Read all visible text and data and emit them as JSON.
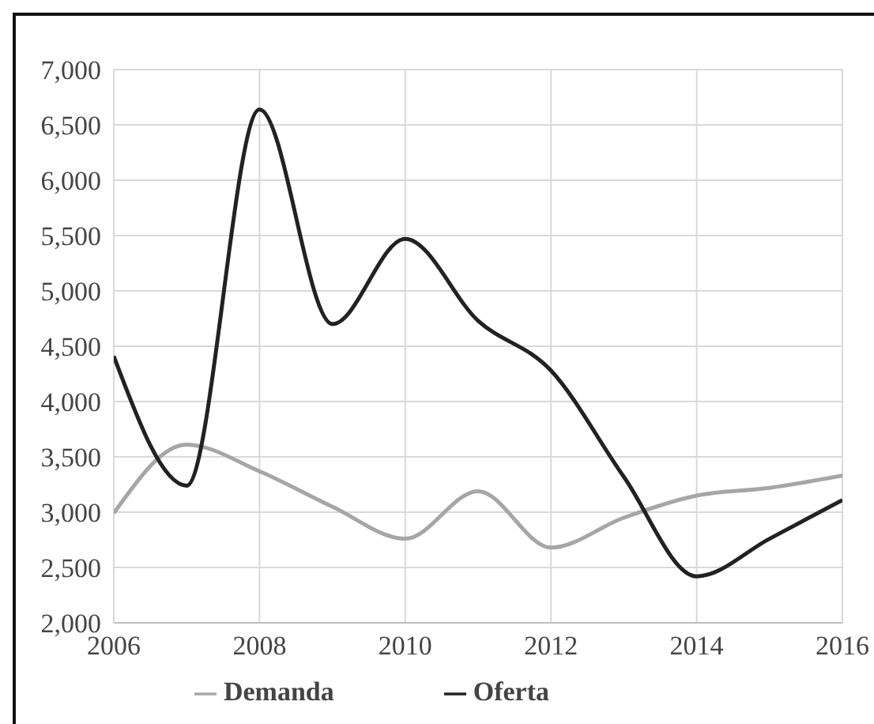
{
  "chart_data": {
    "type": "line",
    "x": [
      2006,
      2007,
      2008,
      2009,
      2010,
      2011,
      2012,
      2013,
      2014,
      2015,
      2016
    ],
    "series": [
      {
        "name": "Demanda",
        "color": "#a6a6a6",
        "values": [
          2990,
          3610,
          3370,
          3050,
          2760,
          3190,
          2680,
          2950,
          3150,
          3220,
          3330
        ]
      },
      {
        "name": "Oferta",
        "color": "#222222",
        "values": [
          4410,
          3240,
          6640,
          4700,
          5470,
          4730,
          4280,
          3320,
          2420,
          2760,
          3110
        ]
      }
    ],
    "xlim": [
      2006,
      2016
    ],
    "xticks": [
      2006,
      2008,
      2010,
      2012,
      2014,
      2016
    ],
    "ylim": [
      2000,
      7000
    ],
    "yticks": [
      {
        "value": 2000,
        "label": "2,000"
      },
      {
        "value": 2500,
        "label": "2,500"
      },
      {
        "value": 3000,
        "label": "3,000"
      },
      {
        "value": 3500,
        "label": "3,500"
      },
      {
        "value": 4000,
        "label": "4,000"
      },
      {
        "value": 4500,
        "label": "4,500"
      },
      {
        "value": 5000,
        "label": "5,000"
      },
      {
        "value": 5500,
        "label": "5,500"
      },
      {
        "value": 6000,
        "label": "6,000"
      },
      {
        "value": 6500,
        "label": "6,500"
      },
      {
        "value": 7000,
        "label": "7,000"
      }
    ],
    "grid": true,
    "legend": "bottom",
    "marker": "none",
    "line_style": "solid"
  }
}
